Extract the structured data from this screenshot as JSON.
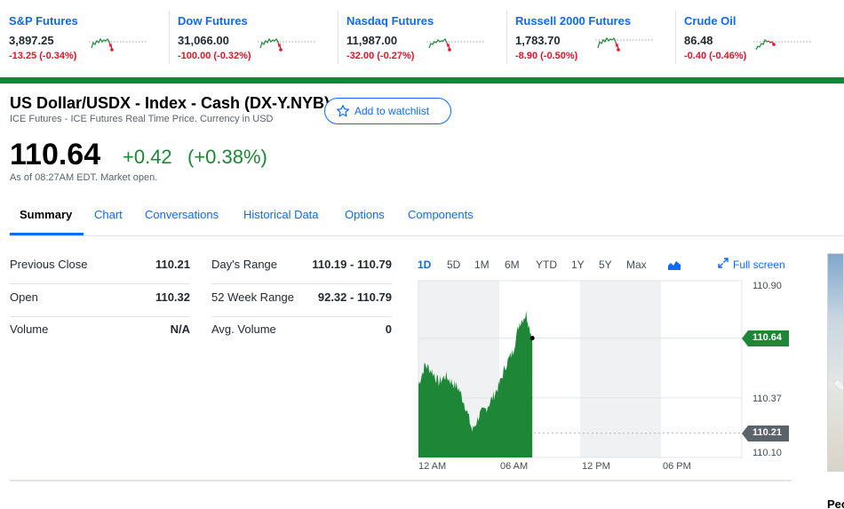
{
  "tickers": [
    {
      "name": "S&P Futures",
      "price": "3,897.25",
      "change": "-13.25 (-0.34%)"
    },
    {
      "name": "Dow Futures",
      "price": "31,066.00",
      "change": "-100.00 (-0.32%)"
    },
    {
      "name": "Nasdaq Futures",
      "price": "11,987.00",
      "change": "-32.00 (-0.27%)"
    },
    {
      "name": "Russell 2000 Futures",
      "price": "1,783.70",
      "change": "-8.90 (-0.50%)"
    },
    {
      "name": "Crude Oil",
      "price": "86.48",
      "change": "-0.40 (-0.46%)"
    }
  ],
  "quote": {
    "title": "US Dollar/USDX - Index - Cash (DX-Y.NYB)",
    "subtitle": "ICE Futures - ICE Futures Real Time Price. Currency in USD",
    "watchlist_label": "Add to watchlist",
    "price": "110.64",
    "change": "+0.42",
    "change_percent": "(+0.38%)",
    "as_of": "As of 08:27AM EDT. Market open."
  },
  "tabs": [
    "Summary",
    "Chart",
    "Conversations",
    "Historical Data",
    "Options",
    "Components"
  ],
  "stats_left": [
    {
      "label": "Previous Close",
      "value": "110.21"
    },
    {
      "label": "Open",
      "value": "110.32"
    },
    {
      "label": "Volume",
      "value": "N/A"
    }
  ],
  "stats_right": [
    {
      "label": "Day's Range",
      "value": "110.19 - 110.79"
    },
    {
      "label": "52 Week Range",
      "value": "92.32 - 110.79"
    },
    {
      "label": "Avg. Volume",
      "value": "0"
    }
  ],
  "chart": {
    "ranges": [
      "1D",
      "5D",
      "1M",
      "6M",
      "YTD",
      "1Y",
      "5Y",
      "Max"
    ],
    "active_range": "1D",
    "fullscreen_label": "Full screen",
    "y_labels": [
      "110.90",
      "110.37",
      "110.10"
    ],
    "current_badge": "110.64",
    "prev_close_badge": "110.21",
    "x_labels": [
      "12 AM",
      "06 AM",
      "12 PM",
      "06 PM"
    ],
    "up_color": "#1e8737",
    "down_color": "#eb0f29"
  },
  "right_edge_text": "Peo",
  "chart_data": {
    "type": "area",
    "x": [
      "00:00",
      "00:30",
      "01:00",
      "01:30",
      "02:00",
      "02:30",
      "03:00",
      "03:30",
      "04:00",
      "04:30",
      "05:00",
      "05:30",
      "06:00",
      "06:30",
      "07:00",
      "07:30",
      "08:00",
      "08:27"
    ],
    "series": [
      {
        "values": [
          110.43,
          110.52,
          110.49,
          110.44,
          110.47,
          110.44,
          110.41,
          110.33,
          110.22,
          110.29,
          110.32,
          110.37,
          110.43,
          110.52,
          110.58,
          110.71,
          110.75,
          110.64
        ]
      }
    ],
    "ylim": [
      110.1,
      110.9
    ],
    "x_labels": [
      "12 AM",
      "06 AM",
      "12 PM",
      "06 PM"
    ],
    "reference_line": 110.21,
    "current_value": 110.64
  }
}
